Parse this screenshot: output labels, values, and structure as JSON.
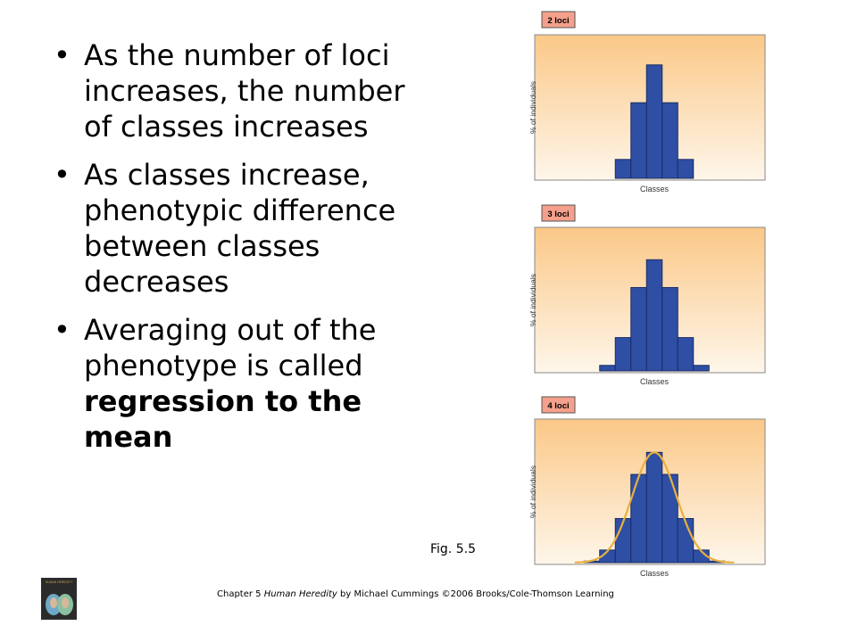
{
  "bullets": [
    {
      "text": "As the number of loci increases, the number of classes increases"
    },
    {
      "text": "As classes increase, phenotypic difference between classes decreases"
    },
    {
      "text_plain": "Averaging out of the phenotype is called ",
      "text_bold": "regression to the mean"
    }
  ],
  "fig_label": "Fig. 5.5",
  "footer": {
    "prefix": "Chapter 5 ",
    "book_title": "Human Heredity",
    "suffix": " by Michael Cummings ©2006 Brooks/Cole-Thomson Learning"
  },
  "book_cover": {
    "title": "HUMAN HEREDITY"
  },
  "colors": {
    "bar_fill": "#2e4fa3",
    "bar_stroke": "#1a2b66",
    "panel_top": "#fbc888",
    "panel_bottom": "#fef6ea",
    "tag_fill": "#f4a08c",
    "curve": "#e8b040"
  },
  "chart_data": [
    {
      "type": "bar",
      "tag": "2 loci",
      "xlabel": "Classes",
      "ylabel": "% of individuals",
      "values": [
        1,
        4,
        6,
        4,
        1
      ],
      "ylim": [
        0,
        7.5
      ],
      "grid": false
    },
    {
      "type": "bar",
      "tag": "3 loci",
      "xlabel": "Classes",
      "ylabel": "% of individuals",
      "values": [
        1,
        6,
        15,
        20,
        15,
        6,
        1
      ],
      "ylim": [
        0,
        25.5
      ],
      "grid": false
    },
    {
      "type": "bar",
      "tag": "4 loci",
      "xlabel": "Classes",
      "ylabel": "% of individuals",
      "values": [
        1,
        8,
        28,
        56,
        70,
        56,
        28,
        8,
        1
      ],
      "ylim": [
        0,
        90
      ],
      "grid": false,
      "curve": "normal"
    }
  ]
}
